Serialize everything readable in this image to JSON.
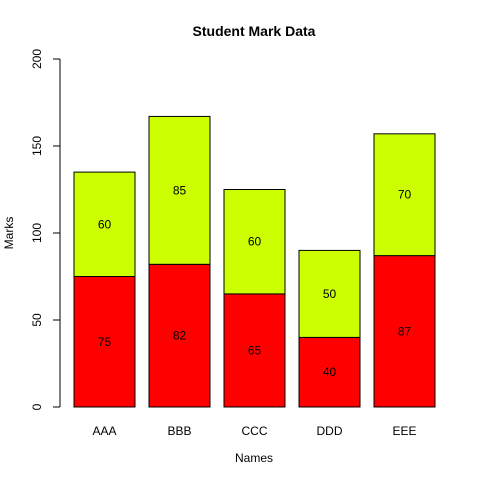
{
  "chart_data": {
    "type": "bar",
    "stacked": true,
    "title": "Student Mark Data",
    "xlabel": "Names",
    "ylabel": "Marks",
    "ylim": [
      0,
      200
    ],
    "yticks": [
      0,
      50,
      100,
      150,
      200
    ],
    "categories": [
      "AAA",
      "BBB",
      "CCC",
      "DDD",
      "EEE"
    ],
    "series": [
      {
        "values": [
          75,
          82,
          65,
          40,
          87
        ],
        "color": "#ff0000"
      },
      {
        "values": [
          60,
          85,
          60,
          50,
          70
        ],
        "color": "#ccff00"
      }
    ],
    "grid": false,
    "legend": "none"
  }
}
